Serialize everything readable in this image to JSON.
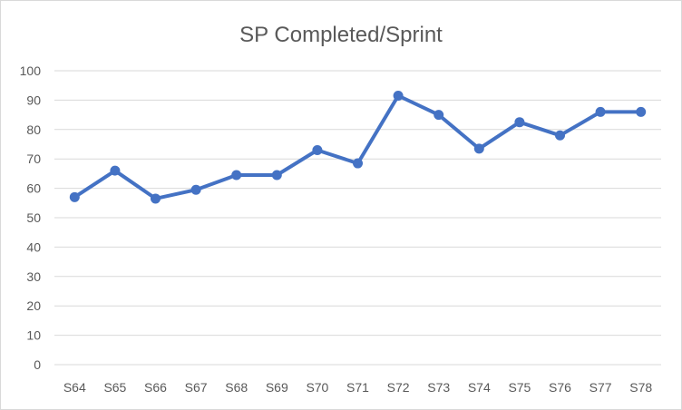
{
  "chart_data": {
    "type": "line",
    "title": "SP Completed/Sprint",
    "xlabel": "",
    "ylabel": "",
    "categories": [
      "S64",
      "S65",
      "S66",
      "S67",
      "S68",
      "S69",
      "S70",
      "S71",
      "S72",
      "S73",
      "S74",
      "S75",
      "S76",
      "S77",
      "S78"
    ],
    "series": [
      {
        "values": [
          57,
          66,
          56.5,
          59.5,
          64.5,
          64.5,
          73,
          68.5,
          91.5,
          85,
          73.5,
          82.5,
          78,
          86,
          86
        ],
        "color": "#4472c4"
      }
    ],
    "ylim": [
      0,
      100
    ],
    "yticks": [
      "0",
      "10",
      "20",
      "30",
      "40",
      "50",
      "60",
      "70",
      "80",
      "90",
      "100"
    ],
    "grid": "horizontal",
    "legend": "none",
    "colors": {
      "grid": "#d9d9d9",
      "text": "#595959",
      "series": "#4472c4"
    }
  }
}
